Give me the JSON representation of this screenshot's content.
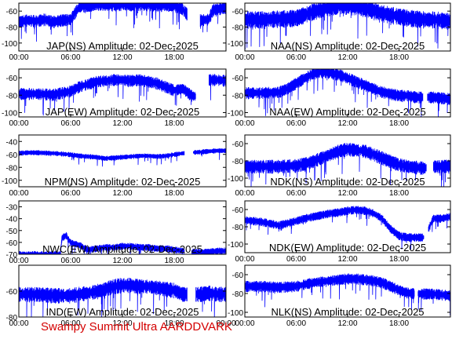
{
  "footer": "Swampy Summit Ultra AARDDVARK",
  "colors": {
    "trace": "#0000ff",
    "axes": "#000000",
    "footer": "#d40000",
    "background": "#ffffff"
  },
  "chart_data": [
    {
      "type": "line",
      "title": "JAP(NS) Amplitude: 02-Dec-2025",
      "x_ticks": [
        "00:00",
        "06:00",
        "12:00",
        "18:00"
      ],
      "y_ticks": [
        -60,
        -80,
        -100
      ],
      "ylim": [
        -110,
        -50
      ],
      "series": [
        {
          "x": [
            0,
            1,
            2,
            3,
            4,
            5,
            6,
            6.5,
            7,
            8,
            9,
            10,
            11,
            12,
            13,
            14,
            15,
            16,
            17,
            18,
            19,
            20,
            21,
            22,
            22.5,
            23,
            24
          ],
          "y": [
            -73,
            -71,
            -72,
            -70,
            -73,
            -71,
            -70,
            -62,
            -54,
            -53,
            -52,
            -51,
            -52,
            -51,
            -52,
            -51,
            -52,
            -53,
            -52,
            -53,
            -57,
            -70,
            -71,
            -70,
            -58,
            -57,
            -55
          ],
          "noise": 16,
          "gaps": [
            [
              19.5,
              21
            ]
          ]
        }
      ]
    },
    {
      "type": "line",
      "title": "NAA(NS) Amplitude: 02-Dec-2025",
      "x_ticks": [
        "00:00",
        "06:00",
        "12:00",
        "18:00"
      ],
      "y_ticks": [
        -60,
        -80,
        -100
      ],
      "ylim": [
        -110,
        -50
      ],
      "series": [
        {
          "x": [
            0,
            2,
            4,
            6,
            7,
            8,
            9,
            10,
            11,
            12,
            13,
            14,
            15,
            16,
            17,
            18,
            19,
            20,
            21,
            22,
            23,
            24
          ],
          "y": [
            -70,
            -70,
            -69,
            -68,
            -64,
            -60,
            -57,
            -55,
            -52,
            -53,
            -54,
            -56,
            -58,
            -62,
            -64,
            -66,
            -68,
            -69,
            -70,
            -70,
            -71,
            -72
          ],
          "noise": 22,
          "gaps": []
        }
      ]
    },
    {
      "type": "line",
      "title": "JAP(EW) Amplitude: 02-Dec-2025",
      "x_ticks": [
        "00:00",
        "06:00",
        "12:00",
        "18:00"
      ],
      "y_ticks": [
        -60,
        -80,
        -100
      ],
      "ylim": [
        -105,
        -50
      ],
      "series": [
        {
          "x": [
            0,
            2,
            4,
            5,
            6,
            7,
            8,
            9,
            10,
            11,
            12,
            13,
            14,
            15,
            16,
            17,
            18,
            19,
            20,
            21,
            22,
            23,
            24
          ],
          "y": [
            -78,
            -78,
            -79,
            -77,
            -75,
            -70,
            -67,
            -64,
            -63,
            -62,
            -62,
            -63,
            -62,
            -64,
            -66,
            -70,
            -74,
            -72,
            -80,
            -82,
            -62,
            -62,
            -63
          ],
          "noise": 14,
          "gaps": [
            [
              20.5,
              22
            ]
          ]
        }
      ]
    },
    {
      "type": "line",
      "title": "NAA(EW) Amplitude: 02-Dec-2025",
      "x_ticks": [
        "00:00",
        "06:00",
        "12:00",
        "18:00"
      ],
      "y_ticks": [
        -60,
        -80,
        -100
      ],
      "ylim": [
        -105,
        -50
      ],
      "series": [
        {
          "x": [
            0,
            2,
            4,
            5,
            6,
            7,
            8,
            9,
            10,
            11,
            12,
            13,
            14,
            15,
            16,
            17,
            18,
            19,
            20,
            21,
            22,
            23,
            24
          ],
          "y": [
            -77,
            -77,
            -76,
            -72,
            -66,
            -60,
            -55,
            -53,
            -54,
            -56,
            -60,
            -64,
            -68,
            -72,
            -76,
            -78,
            -80,
            -80,
            -82,
            -82,
            -82,
            -83,
            -84
          ],
          "noise": 14,
          "gaps": [
            [
              20.8,
              21.3
            ]
          ]
        }
      ]
    },
    {
      "type": "line",
      "title": "NPM(NS) Amplitude: 02-Dec-2025",
      "x_ticks": [
        "00:00",
        "06:00",
        "12:00",
        "18:00"
      ],
      "y_ticks": [
        -40,
        -60,
        -80,
        -100
      ],
      "ylim": [
        -110,
        -30
      ],
      "series": [
        {
          "x": [
            0,
            1,
            2,
            4,
            6,
            7,
            8,
            9,
            10,
            11,
            12,
            13,
            14,
            15,
            16,
            17,
            18,
            19,
            20,
            21,
            22,
            23,
            24
          ],
          "y": [
            -58,
            -57,
            -57,
            -58,
            -60,
            -62,
            -63,
            -64,
            -66,
            -65,
            -64,
            -63,
            -62,
            -62,
            -63,
            -62,
            -60,
            -58,
            -57,
            -56,
            -55,
            -54,
            -54
          ],
          "noise": 8,
          "gaps": [
            [
              19.2,
              20.2
            ]
          ]
        }
      ]
    },
    {
      "type": "line",
      "title": "NDK(NS) Amplitude: 02-Dec-2025",
      "x_ticks": [
        "00:00",
        "06:00",
        "12:00",
        "18:00"
      ],
      "y_ticks": [
        -60,
        -80,
        -100
      ],
      "ylim": [
        -110,
        -50
      ],
      "series": [
        {
          "x": [
            0,
            2,
            4,
            6,
            7,
            8,
            9,
            10,
            11,
            12,
            13,
            14,
            15,
            16,
            17,
            18,
            19,
            20,
            21,
            22,
            23,
            24
          ],
          "y": [
            -86,
            -86,
            -86,
            -85,
            -83,
            -80,
            -76,
            -72,
            -68,
            -66,
            -67,
            -68,
            -72,
            -76,
            -80,
            -84,
            -86,
            -87,
            -88,
            -86,
            -86,
            -85
          ],
          "noise": 16,
          "gaps": [
            [
              21.2,
              22
            ]
          ]
        }
      ]
    },
    {
      "type": "line",
      "title": "NWC(EW) Amplitude: 02-Dec-2025",
      "x_ticks": [
        "00:00",
        "06:00",
        "12:00",
        "18:00"
      ],
      "y_ticks": [
        -30,
        -40,
        -50,
        -60,
        -70
      ],
      "ylim": [
        -70,
        -25
      ],
      "series": [
        {
          "x": [
            0,
            1,
            3,
            4.8,
            5,
            5.5,
            6,
            7,
            8,
            9,
            10,
            11,
            12,
            13,
            14,
            15,
            16,
            17,
            18,
            19,
            20,
            21,
            22,
            23,
            24
          ],
          "y": [
            -70,
            -70,
            -70,
            -70,
            -56,
            -54,
            -60,
            -62,
            -66,
            -65,
            -64,
            -64,
            -63,
            -63,
            -64,
            -64,
            -65,
            -65,
            -66,
            -67,
            -68,
            -68,
            -68,
            -67,
            -67
          ],
          "noise": 6,
          "gaps": [
            [
              19.2,
              20
            ]
          ]
        }
      ]
    },
    {
      "type": "line",
      "title": "NDK(EW) Amplitude: 02-Dec-2025",
      "x_ticks": [
        "00:00",
        "06:00",
        "12:00",
        "18:00"
      ],
      "y_ticks": [
        -60,
        -80,
        -100
      ],
      "ylim": [
        -110,
        -50
      ],
      "series": [
        {
          "x": [
            0,
            2,
            4,
            6,
            7,
            8,
            9,
            10,
            11,
            12,
            13,
            14,
            15,
            16,
            17,
            18,
            19,
            20,
            21,
            22,
            23,
            24
          ],
          "y": [
            -72,
            -74,
            -78,
            -73,
            -70,
            -68,
            -66,
            -64,
            -63,
            -61,
            -60,
            -61,
            -64,
            -70,
            -82,
            -90,
            -92,
            -92,
            -92,
            -70,
            -70,
            -68
          ],
          "noise": 10,
          "gaps": [
            [
              20.9,
              21.4
            ]
          ]
        }
      ]
    },
    {
      "type": "line",
      "title": "IND(EW) Amplitude: 02-Dec-2025",
      "x_ticks": [
        "00:00",
        "06:00",
        "12:00",
        "18:00",
        "00:00"
      ],
      "y_ticks": [
        -60,
        -80
      ],
      "ylim": [
        -80,
        -40
      ],
      "series": [
        {
          "x": [
            0,
            2,
            4,
            6,
            7,
            8,
            9,
            10,
            11,
            12,
            13,
            14,
            15,
            16,
            17,
            18,
            19,
            20,
            21,
            22,
            23,
            24
          ],
          "y": [
            -62,
            -62,
            -63,
            -63,
            -62,
            -61,
            -60,
            -58,
            -56,
            -55,
            -55,
            -56,
            -56,
            -57,
            -58,
            -59,
            -62,
            -62,
            -62,
            -61,
            -62,
            -62
          ],
          "noise": 12,
          "gaps": [
            [
              19.5,
              20.5
            ]
          ]
        }
      ]
    },
    {
      "type": "line",
      "title": "NLK(NS) Amplitude: 02-Dec-2025",
      "x_ticks": [
        "00:00",
        "06:00",
        "12:00",
        "18:00"
      ],
      "y_ticks": [
        -60,
        -80,
        -100
      ],
      "ylim": [
        -105,
        -50
      ],
      "series": [
        {
          "x": [
            0,
            2,
            4,
            6,
            7,
            8,
            9,
            10,
            11,
            12,
            13,
            14,
            15,
            16,
            17,
            18,
            19,
            20,
            21,
            22,
            23,
            24
          ],
          "y": [
            -72,
            -72,
            -73,
            -72,
            -70,
            -68,
            -67,
            -66,
            -65,
            -64,
            -64,
            -65,
            -66,
            -68,
            -72,
            -76,
            -79,
            -80,
            -80,
            -80,
            -81,
            -82
          ],
          "noise": 12,
          "gaps": [
            [
              19.8,
              20.2
            ]
          ]
        }
      ]
    }
  ]
}
